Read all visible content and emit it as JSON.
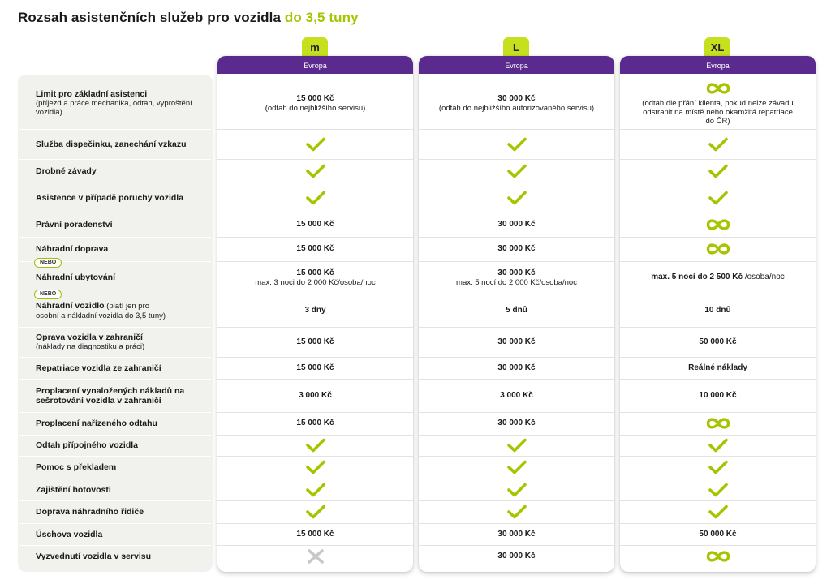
{
  "title": {
    "main": "Rozsah asistenčních služeb pro vozidla ",
    "highlight": "do 3,5 tuny"
  },
  "colors": {
    "purple": "#5b2a8f",
    "lime": "#c6df1f",
    "check": "#a8c400",
    "cross": "#c8c8c8"
  },
  "plans": [
    {
      "tab": "m",
      "region": "Evropa"
    },
    {
      "tab": "L",
      "region": "Evropa"
    },
    {
      "tab": "XL",
      "region": "Evropa"
    }
  ],
  "badges": {
    "nebo": "NEBO"
  },
  "rows": [
    {
      "label": "Limit pro základní asistenci",
      "sub": "(příjezd a práce mechanika, odtah, vyproštění vozidla)",
      "cells": [
        {
          "type": "text",
          "main": "15 000 Kč",
          "sub": "(odtah do nejbližšího servisu)"
        },
        {
          "type": "text",
          "main": "30 000 Kč",
          "sub": "(odtah do  nejbližšího autorizovaného servisu)"
        },
        {
          "type": "infinity",
          "sub": "(odtah dle přání klienta, pokud nelze závadu odstranit na místě nebo okamžitá repatriace do ČR)"
        }
      ]
    },
    {
      "label": "Služba dispečinku, zanechání vzkazu",
      "sub": "",
      "cells": [
        {
          "type": "check"
        },
        {
          "type": "check"
        },
        {
          "type": "check"
        }
      ]
    },
    {
      "label": "Drobné závady",
      "sub": "",
      "cells": [
        {
          "type": "check"
        },
        {
          "type": "check"
        },
        {
          "type": "check"
        }
      ]
    },
    {
      "label": "Asistence v případě poruchy vozidla",
      "sub": "",
      "cells": [
        {
          "type": "check"
        },
        {
          "type": "check"
        },
        {
          "type": "check"
        }
      ]
    },
    {
      "label": "Právní poradenství",
      "sub": "",
      "cells": [
        {
          "type": "text",
          "main": "15 000 Kč"
        },
        {
          "type": "text",
          "main": "30 000 Kč"
        },
        {
          "type": "infinity"
        }
      ]
    },
    {
      "label": "Náhradní doprava",
      "sub": "",
      "cells": [
        {
          "type": "text",
          "main": "15 000 Kč"
        },
        {
          "type": "text",
          "main": "30 000 Kč"
        },
        {
          "type": "infinity"
        }
      ]
    },
    {
      "label": "Náhradní ubytování",
      "sub": "",
      "cells": [
        {
          "type": "text",
          "main": "15 000 Kč",
          "sub": "max. 3 noci do 2 000 Kč/osoba/noc"
        },
        {
          "type": "text",
          "main": "30 000 Kč",
          "sub": "max. 5 nocí do 2 000 Kč/osoba/noc"
        },
        {
          "type": "text",
          "main": "max. 5 nocí do 2 500 Kč",
          "inline": " /osoba/noc"
        }
      ]
    },
    {
      "label": "Náhradní vozidlo",
      "inlinesub": " (platí jen pro",
      "sub": "osobní a nákladní vozidla do 3,5 tuny)",
      "cells": [
        {
          "type": "text",
          "main": "3 dny"
        },
        {
          "type": "text",
          "main": "5 dnů"
        },
        {
          "type": "text",
          "main": "10 dnů"
        }
      ]
    },
    {
      "label": "Oprava vozidla v zahraničí",
      "sub": " (náklady na diagnostiku a práci)",
      "cells": [
        {
          "type": "text",
          "main": "15 000 Kč"
        },
        {
          "type": "text",
          "main": "30 000 Kč"
        },
        {
          "type": "text",
          "main": "50 000 Kč"
        }
      ]
    },
    {
      "label": "Repatriace vozidla ze zahraničí",
      "sub": "",
      "cells": [
        {
          "type": "text",
          "main": "15 000 Kč"
        },
        {
          "type": "text",
          "main": "30 000 Kč"
        },
        {
          "type": "text",
          "main": "Reálné náklady"
        }
      ]
    },
    {
      "label": "Proplacení vynaložených nákladů na sešrotování vozidla v zahraničí",
      "sub": "",
      "cells": [
        {
          "type": "text",
          "main": "3 000 Kč"
        },
        {
          "type": "text",
          "main": "3 000 Kč"
        },
        {
          "type": "text",
          "main": "10 000 Kč"
        }
      ]
    },
    {
      "label": "Proplacení nařízeného odtahu",
      "sub": "",
      "cells": [
        {
          "type": "text",
          "main": "15 000 Kč"
        },
        {
          "type": "text",
          "main": "30 000 Kč"
        },
        {
          "type": "infinity"
        }
      ]
    },
    {
      "label": "Odtah přípojného vozidla",
      "sub": "",
      "cells": [
        {
          "type": "check"
        },
        {
          "type": "check"
        },
        {
          "type": "check"
        }
      ]
    },
    {
      "label": "Pomoc s překladem",
      "sub": "",
      "cells": [
        {
          "type": "check"
        },
        {
          "type": "check"
        },
        {
          "type": "check"
        }
      ]
    },
    {
      "label": "Zajištění hotovosti",
      "sub": "",
      "cells": [
        {
          "type": "check"
        },
        {
          "type": "check"
        },
        {
          "type": "check"
        }
      ]
    },
    {
      "label": "Doprava náhradního řidiče",
      "sub": "",
      "cells": [
        {
          "type": "check"
        },
        {
          "type": "check"
        },
        {
          "type": "check"
        }
      ]
    },
    {
      "label": "Úschova vozidla",
      "sub": "",
      "cells": [
        {
          "type": "text",
          "main": "15 000 Kč"
        },
        {
          "type": "text",
          "main": "30 000 Kč"
        },
        {
          "type": "text",
          "main": "50 000 Kč"
        }
      ]
    },
    {
      "label": "Vyzvednutí vozidla v servisu",
      "sub": "",
      "cells": [
        {
          "type": "cross"
        },
        {
          "type": "text",
          "main": "30 000 Kč"
        },
        {
          "type": "infinity"
        }
      ]
    }
  ]
}
